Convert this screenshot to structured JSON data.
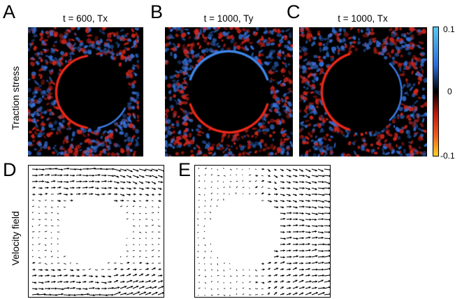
{
  "panels": {
    "A": {
      "letter": "A",
      "title": "t = 600, Tx"
    },
    "B": {
      "letter": "B",
      "title": "t = 1000, Ty"
    },
    "C": {
      "letter": "C",
      "title": "t = 1000, Tx"
    },
    "D": {
      "letter": "D"
    },
    "E": {
      "letter": "E"
    }
  },
  "row_labels": {
    "traction": "Traction stress",
    "velocity": "Velocity field"
  },
  "colorbar": {
    "ticks": [
      "0.1",
      "0",
      "-0.1"
    ],
    "colors": [
      "#58c8f0",
      "#2a6ad8",
      "#000000",
      "#c01a10",
      "#f06020",
      "#ffd020"
    ]
  },
  "colors": {
    "positive": "#e02818",
    "negative": "#3a78e0",
    "background": "#000000",
    "arrow": "#000000"
  }
}
